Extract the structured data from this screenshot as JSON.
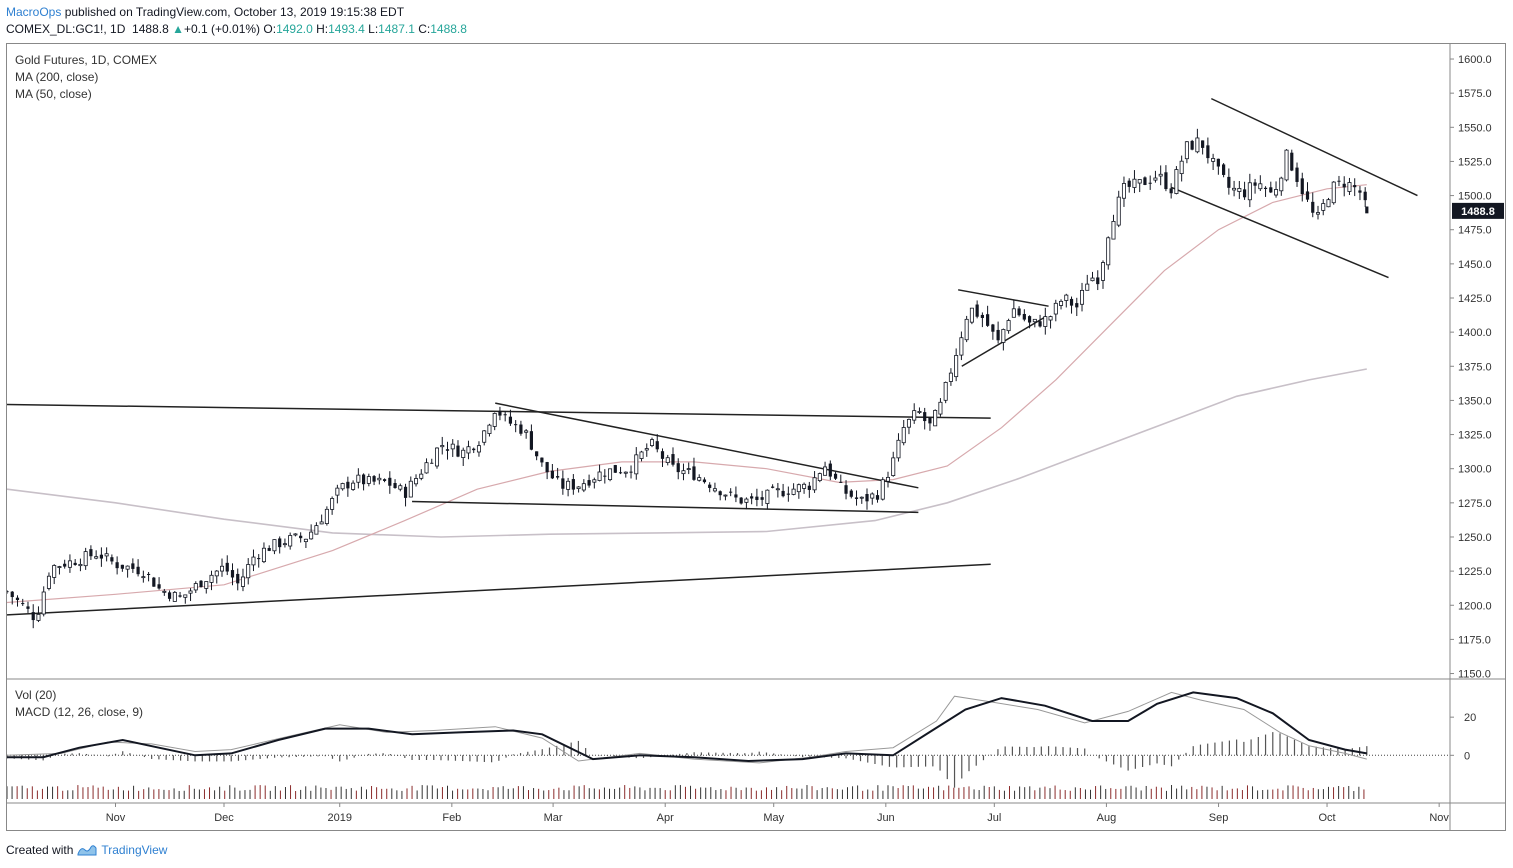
{
  "header": {
    "author": "MacroOps",
    "published_text": "published on TradingView.com, October 13, 2019 19:15:38 EDT",
    "symbol": "COMEX_DL:GC1!, 1D",
    "last": "1488.8",
    "change_arrow": "▲",
    "change": "+0.1 (+0.01%)",
    "open_label": "O:",
    "open": "1492.0",
    "high_label": "H:",
    "high": "1493.4",
    "low_label": "L:",
    "low": "1487.1",
    "close_label": "C:",
    "close": "1488.8"
  },
  "footer": {
    "created_with": "Created with",
    "brand": "TradingView"
  },
  "colors": {
    "up": "#26a69a",
    "candle": "#131722",
    "ma200": "#c8c0c8",
    "ma50": "#d7a9ad",
    "macd": "#131722",
    "signal": "#999999",
    "price_tag_bg": "#131722",
    "author": "#2f80d1"
  },
  "chart_data": {
    "type": "candlestick",
    "title": "Gold Futures, 1D, COMEX",
    "indicators": [
      "MA (200, close)",
      "MA (50, close)"
    ],
    "lower_pane_labels": [
      "Vol (20)",
      "MACD (12, 26, close, 9)"
    ],
    "last_price_label": "1488.8",
    "ylim": [
      1150,
      1610
    ],
    "y_ticks": [
      "1600.0",
      "1575.0",
      "1550.0",
      "1525.0",
      "1500.0",
      "1475.0",
      "1450.0",
      "1425.0",
      "1400.0",
      "1375.0",
      "1350.0",
      "1325.0",
      "1300.0",
      "1275.0",
      "1250.0",
      "1225.0",
      "1200.0",
      "1175.0",
      "1150.0"
    ],
    "x_ticks": [
      "Nov",
      "Dec",
      "2019",
      "Feb",
      "Mar",
      "Apr",
      "May",
      "Jun",
      "Jul",
      "Aug",
      "Sep",
      "Oct",
      "Nov"
    ],
    "macd_ticks": [
      "20",
      "0"
    ],
    "x_range_days": [
      0,
      399
    ],
    "x_tick_days": [
      30,
      60,
      92,
      123,
      151,
      182,
      212,
      243,
      273,
      304,
      335,
      365,
      396
    ],
    "close_series": [
      {
        "d": 0,
        "p": 1210
      },
      {
        "d": 5,
        "p": 1198
      },
      {
        "d": 8,
        "p": 1190
      },
      {
        "d": 12,
        "p": 1228
      },
      {
        "d": 18,
        "p": 1232
      },
      {
        "d": 25,
        "p": 1238
      },
      {
        "d": 30,
        "p": 1230
      },
      {
        "d": 38,
        "p": 1225
      },
      {
        "d": 42,
        "p": 1212
      },
      {
        "d": 48,
        "p": 1205
      },
      {
        "d": 55,
        "p": 1220
      },
      {
        "d": 60,
        "p": 1228
      },
      {
        "d": 64,
        "p": 1215
      },
      {
        "d": 68,
        "p": 1235
      },
      {
        "d": 72,
        "p": 1242
      },
      {
        "d": 78,
        "p": 1248
      },
      {
        "d": 83,
        "p": 1250
      },
      {
        "d": 88,
        "p": 1268
      },
      {
        "d": 92,
        "p": 1285
      },
      {
        "d": 96,
        "p": 1292
      },
      {
        "d": 100,
        "p": 1290
      },
      {
        "d": 105,
        "p": 1290
      },
      {
        "d": 110,
        "p": 1282
      },
      {
        "d": 115,
        "p": 1300
      },
      {
        "d": 120,
        "p": 1318
      },
      {
        "d": 126,
        "p": 1312
      },
      {
        "d": 131,
        "p": 1322
      },
      {
        "d": 135,
        "p": 1345
      },
      {
        "d": 138,
        "p": 1335
      },
      {
        "d": 143,
        "p": 1328
      },
      {
        "d": 148,
        "p": 1302
      },
      {
        "d": 153,
        "p": 1287
      },
      {
        "d": 158,
        "p": 1288
      },
      {
        "d": 165,
        "p": 1298
      },
      {
        "d": 172,
        "p": 1300
      },
      {
        "d": 178,
        "p": 1318
      },
      {
        "d": 184,
        "p": 1300
      },
      {
        "d": 190,
        "p": 1296
      },
      {
        "d": 195,
        "p": 1288
      },
      {
        "d": 202,
        "p": 1277
      },
      {
        "d": 207,
        "p": 1276
      },
      {
        "d": 212,
        "p": 1282
      },
      {
        "d": 217,
        "p": 1285
      },
      {
        "d": 222,
        "p": 1288
      },
      {
        "d": 226,
        "p": 1303
      },
      {
        "d": 231,
        "p": 1284
      },
      {
        "d": 236,
        "p": 1276
      },
      {
        "d": 241,
        "p": 1282
      },
      {
        "d": 245,
        "p": 1305
      },
      {
        "d": 248,
        "p": 1330
      },
      {
        "d": 252,
        "p": 1342
      },
      {
        "d": 255,
        "p": 1330
      },
      {
        "d": 258,
        "p": 1345
      },
      {
        "d": 263,
        "p": 1390
      },
      {
        "d": 266,
        "p": 1418
      },
      {
        "d": 270,
        "p": 1410
      },
      {
        "d": 274,
        "p": 1392
      },
      {
        "d": 278,
        "p": 1418
      },
      {
        "d": 283,
        "p": 1405
      },
      {
        "d": 288,
        "p": 1410
      },
      {
        "d": 292,
        "p": 1425
      },
      {
        "d": 296,
        "p": 1418
      },
      {
        "d": 299,
        "p": 1440
      },
      {
        "d": 302,
        "p": 1440
      },
      {
        "d": 305,
        "p": 1480
      },
      {
        "d": 309,
        "p": 1505
      },
      {
        "d": 313,
        "p": 1508
      },
      {
        "d": 318,
        "p": 1515
      },
      {
        "d": 322,
        "p": 1505
      },
      {
        "d": 326,
        "p": 1535
      },
      {
        "d": 330,
        "p": 1540
      },
      {
        "d": 334,
        "p": 1520
      },
      {
        "d": 338,
        "p": 1505
      },
      {
        "d": 342,
        "p": 1502
      },
      {
        "d": 346,
        "p": 1510
      },
      {
        "d": 350,
        "p": 1500
      },
      {
        "d": 354,
        "p": 1530
      },
      {
        "d": 358,
        "p": 1505
      },
      {
        "d": 362,
        "p": 1480
      },
      {
        "d": 366,
        "p": 1505
      },
      {
        "d": 370,
        "p": 1510
      },
      {
        "d": 374,
        "p": 1503
      },
      {
        "d": 376,
        "p": 1488.8
      }
    ],
    "ma50_series": [
      {
        "d": 0,
        "p": 1202
      },
      {
        "d": 30,
        "p": 1208
      },
      {
        "d": 60,
        "p": 1215
      },
      {
        "d": 90,
        "p": 1240
      },
      {
        "d": 110,
        "p": 1262
      },
      {
        "d": 130,
        "p": 1285
      },
      {
        "d": 150,
        "p": 1298
      },
      {
        "d": 170,
        "p": 1305
      },
      {
        "d": 190,
        "p": 1305
      },
      {
        "d": 210,
        "p": 1300
      },
      {
        "d": 230,
        "p": 1290
      },
      {
        "d": 245,
        "p": 1292
      },
      {
        "d": 260,
        "p": 1302
      },
      {
        "d": 275,
        "p": 1330
      },
      {
        "d": 290,
        "p": 1365
      },
      {
        "d": 305,
        "p": 1405
      },
      {
        "d": 320,
        "p": 1445
      },
      {
        "d": 335,
        "p": 1475
      },
      {
        "d": 350,
        "p": 1495
      },
      {
        "d": 365,
        "p": 1505
      },
      {
        "d": 376,
        "p": 1508
      }
    ],
    "ma200_series": [
      {
        "d": 0,
        "p": 1285
      },
      {
        "d": 30,
        "p": 1275
      },
      {
        "d": 60,
        "p": 1263
      },
      {
        "d": 90,
        "p": 1253
      },
      {
        "d": 120,
        "p": 1250
      },
      {
        "d": 150,
        "p": 1252
      },
      {
        "d": 180,
        "p": 1253
      },
      {
        "d": 210,
        "p": 1254
      },
      {
        "d": 240,
        "p": 1262
      },
      {
        "d": 260,
        "p": 1275
      },
      {
        "d": 280,
        "p": 1293
      },
      {
        "d": 300,
        "p": 1313
      },
      {
        "d": 320,
        "p": 1333
      },
      {
        "d": 340,
        "p": 1353
      },
      {
        "d": 360,
        "p": 1365
      },
      {
        "d": 376,
        "p": 1373
      }
    ],
    "trendlines": [
      {
        "d1": 0,
        "p1": 1347,
        "d2": 272,
        "p2": 1337
      },
      {
        "d1": 0,
        "p1": 1193,
        "d2": 272,
        "p2": 1230
      },
      {
        "d1": 135,
        "p1": 1348,
        "d2": 252,
        "p2": 1286
      },
      {
        "d1": 112,
        "p1": 1276,
        "d2": 252,
        "p2": 1268
      },
      {
        "d1": 263,
        "p1": 1431,
        "d2": 288,
        "p2": 1419
      },
      {
        "d1": 264,
        "p1": 1375,
        "d2": 287,
        "p2": 1411
      },
      {
        "d1": 333,
        "p1": 1571,
        "d2": 390,
        "p2": 1500
      },
      {
        "d1": 322,
        "p1": 1506,
        "d2": 382,
        "p2": 1440
      }
    ],
    "macd_series": [
      {
        "d": 0,
        "v": -1
      },
      {
        "d": 10,
        "v": -1
      },
      {
        "d": 20,
        "v": 4
      },
      {
        "d": 32,
        "v": 8
      },
      {
        "d": 42,
        "v": 4
      },
      {
        "d": 52,
        "v": 0
      },
      {
        "d": 62,
        "v": 1
      },
      {
        "d": 75,
        "v": 8
      },
      {
        "d": 88,
        "v": 14
      },
      {
        "d": 100,
        "v": 14
      },
      {
        "d": 112,
        "v": 11
      },
      {
        "d": 125,
        "v": 12
      },
      {
        "d": 140,
        "v": 13
      },
      {
        "d": 148,
        "v": 11
      },
      {
        "d": 162,
        "v": -2
      },
      {
        "d": 175,
        "v": 0
      },
      {
        "d": 190,
        "v": -1
      },
      {
        "d": 205,
        "v": -3
      },
      {
        "d": 220,
        "v": -2
      },
      {
        "d": 232,
        "v": 1
      },
      {
        "d": 245,
        "v": 0
      },
      {
        "d": 255,
        "v": 12
      },
      {
        "d": 265,
        "v": 24
      },
      {
        "d": 275,
        "v": 30
      },
      {
        "d": 287,
        "v": 26
      },
      {
        "d": 300,
        "v": 18
      },
      {
        "d": 310,
        "v": 18
      },
      {
        "d": 318,
        "v": 27
      },
      {
        "d": 328,
        "v": 33
      },
      {
        "d": 340,
        "v": 30
      },
      {
        "d": 350,
        "v": 22
      },
      {
        "d": 360,
        "v": 8
      },
      {
        "d": 370,
        "v": 3
      },
      {
        "d": 376,
        "v": 1
      }
    ],
    "signal_series": [
      {
        "d": 0,
        "v": 0
      },
      {
        "d": 15,
        "v": 1
      },
      {
        "d": 28,
        "v": 7
      },
      {
        "d": 40,
        "v": 6
      },
      {
        "d": 52,
        "v": 2
      },
      {
        "d": 62,
        "v": 3
      },
      {
        "d": 78,
        "v": 10
      },
      {
        "d": 92,
        "v": 16
      },
      {
        "d": 105,
        "v": 12
      },
      {
        "d": 118,
        "v": 13
      },
      {
        "d": 135,
        "v": 15
      },
      {
        "d": 148,
        "v": 9
      },
      {
        "d": 158,
        "v": -3
      },
      {
        "d": 175,
        "v": 1
      },
      {
        "d": 190,
        "v": -2
      },
      {
        "d": 208,
        "v": -4
      },
      {
        "d": 222,
        "v": -1
      },
      {
        "d": 232,
        "v": 2
      },
      {
        "d": 245,
        "v": 4
      },
      {
        "d": 257,
        "v": 18
      },
      {
        "d": 262,
        "v": 31
      },
      {
        "d": 272,
        "v": 28
      },
      {
        "d": 285,
        "v": 24
      },
      {
        "d": 298,
        "v": 17
      },
      {
        "d": 310,
        "v": 23
      },
      {
        "d": 322,
        "v": 33
      },
      {
        "d": 330,
        "v": 29
      },
      {
        "d": 342,
        "v": 24
      },
      {
        "d": 352,
        "v": 12
      },
      {
        "d": 360,
        "v": 5
      },
      {
        "d": 370,
        "v": 1
      },
      {
        "d": 376,
        "v": -2
      }
    ]
  }
}
